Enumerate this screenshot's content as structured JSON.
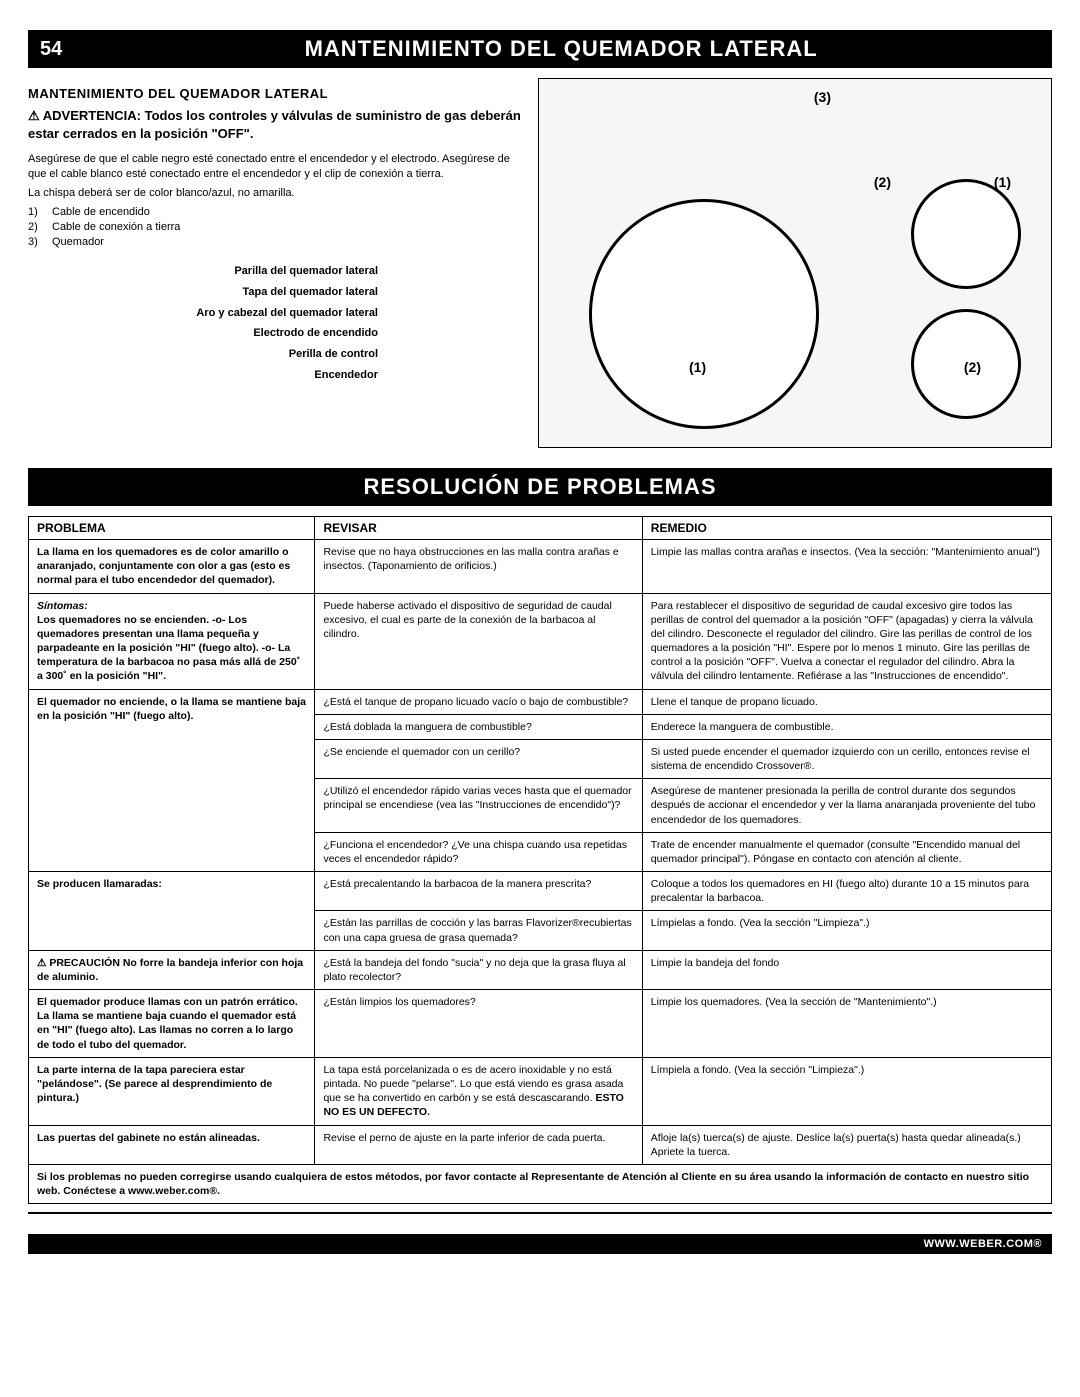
{
  "page_number": "54",
  "title1": "MANTENIMIENTO DEL QUEMADOR LATERAL",
  "section_heading": "MANTENIMIENTO DEL QUEMADOR LATERAL",
  "warning": "⚠ ADVERTENCIA: Todos los controles y válvulas de suministro de gas deberán estar cerrados en la posición \"OFF\".",
  "body1": "Asegúrese de que el cable negro esté conectado entre el encendedor y el electrodo. Asegúrese de que el cable blanco esté conectado entre el encendedor y el clip de conexión a tierra.",
  "body2": "La chispa deberá ser de color blanco/azul, no amarilla.",
  "numlist": [
    {
      "n": "1)",
      "t": "Cable de encendido"
    },
    {
      "n": "2)",
      "t": "Cable de conexión a tierra"
    },
    {
      "n": "3)",
      "t": "Quemador"
    }
  ],
  "part_labels": [
    "Parilla del quemador lateral",
    "Tapa del quemador lateral",
    "Aro y cabezal del quemador lateral",
    "Electrodo de encendido",
    "Perilla de control",
    "Encendedor"
  ],
  "callouts": {
    "c3": "(3)",
    "c2": "(2)",
    "c1a": "(1)",
    "c1b": "(1)",
    "c2b": "(2)"
  },
  "title2": "RESOLUCIÓN DE PROBLEMAS",
  "headers": {
    "p": "PROBLEMA",
    "r": "REVISAR",
    "m": "REMEDIO"
  },
  "rows": [
    {
      "p": "La llama en los quemadores es de color amarillo o anaranjado, conjuntamente con olor a gas (esto es normal para el tubo encendedor del quemador).",
      "pb": true,
      "r": "Revise que no haya obstrucciones en las malla contra arañas e insectos. (Taponamiento de orificios.)",
      "m": "Limpie las mallas contra arañas e insectos. (Vea la sección: \"Mantenimiento anual\")"
    },
    {
      "p_pre": "Síntomas:",
      "p": "Los quemadores no se encienden. -o- Los quemadores presentan una llama pequeña y parpadeante en la posición \"HI\" (fuego alto). -o- La temperatura de la barbacoa no pasa más allá de 250˚ a 300˚ en la posición \"HI\".",
      "pb": true,
      "r": "Puede haberse activado el dispositivo de seguridad de caudal excesivo, el cual es parte de la conexión de la barbacoa al cilindro.",
      "m": "Para restablecer el dispositivo de seguridad de caudal excesivo gire todos las perillas de control del quemador a la posición \"OFF\" (apagadas) y cierra la válvula del cilindro. Desconecte el regulador del cilindro. Gire las perillas de control de los quemadores a la posición \"HI\". Espere por lo menos 1 minuto. Gire las perillas de control a la posición \"OFF\". Vuelva a conectar el regulador del cilindro. Abra la válvula del cilindro lentamente. Refiérase a las \"Instrucciones de encendido\"."
    },
    {
      "p": "El quemador no enciende, o la llama se mantiene baja en la posición \"HI\" (fuego alto).",
      "pb": true,
      "rowspan_p": 5,
      "r": "¿Está el tanque de propano licuado vacío o bajo de combustible?",
      "m": "Llene el tanque de propano licuado."
    },
    {
      "r": "¿Está doblada la manguera de combustible?",
      "m": "Enderece la manguera de combustible."
    },
    {
      "r": "¿Se enciende el quemador con un cerillo?",
      "m": "Si usted puede encender el quemador izquierdo con un cerillo, entonces revise el sistema de encendido Crossover®."
    },
    {
      "r": "¿Utilizó el encendedor rápido varias veces hasta que el quemador principal se encendiese (vea las \"Instrucciones de encendido\")?",
      "m": "Asegúrese de mantener presionada la perilla de control durante dos segundos después de accionar el encendedor y ver la llama anaranjada proveniente del tubo encendedor de los quemadores."
    },
    {
      "r": "¿Funciona el encendedor? ¿Ve una chispa cuando usa repetidas veces el encendedor rápido?",
      "m": "Trate de encender manualmente el quemador (consulte \"Encendido manual del quemador principal\"). Póngase en contacto con atención al cliente."
    },
    {
      "p": "Se producen llamaradas:",
      "pb": true,
      "rowspan_p": 2,
      "r": "¿Está precalentando la barbacoa de la manera prescrita?",
      "m": "Coloque a todos los quemadores en HI (fuego alto) durante 10 a 15 minutos para precalentar la barbacoa."
    },
    {
      "r": "¿Están las parrillas de cocción y las barras Flavorizer®recubiertas con una capa gruesa de grasa quemada?",
      "m": "Límpielas a fondo. (Vea la sección \"Limpieza\".)"
    },
    {
      "p": "⚠ PRECAUCIÓN No forre la bandeja inferior con hoja de aluminio.",
      "pb": true,
      "r": "¿Está la bandeja del fondo \"sucia\" y no deja que la grasa fluya al plato recolector?",
      "m": "Limpie la bandeja del fondo"
    },
    {
      "p": "El quemador produce llamas con un patrón errático. La llama se mantiene baja cuando el quemador está en \"HI\" (fuego alto). Las llamas no corren a lo largo de todo el tubo del quemador.",
      "pb": true,
      "r": "¿Están limpios los quemadores?",
      "m": "Limpie los quemadores. (Vea la sección de \"Mantenimiento\".)"
    },
    {
      "p": "La parte interna de la tapa pareciera estar \"pelándose\". (Se parece al desprendimiento de pintura.)",
      "pb": true,
      "r_html": "La tapa está porcelanizada o es de acero inoxidable y no está pintada. No puede \"pelarse\". Lo que está viendo es grasa asada que se ha convertido en carbón y se está descascarando. <b>ESTO NO ES UN DEFECTO.</b>",
      "m": "Límpiela a fondo. (Vea la sección \"Limpieza\".)"
    },
    {
      "p": "Las puertas del gabinete no están alineadas.",
      "pb": true,
      "r": "Revise el perno de ajuste en la parte inferior de cada puerta.",
      "m": "Afloje la(s) tuerca(s) de ajuste. Deslice la(s) puerta(s) hasta quedar alineada(s.) Apriete la tuerca."
    }
  ],
  "footnote": "Si los problemas no pueden corregirse usando cualquiera de estos métodos, por favor contacte al Representante de Atención al Cliente en su área usando la información de contacto en nuestro sitio web. Conéctese a www.weber.com®.",
  "footer": "WWW.WEBER.COM®"
}
